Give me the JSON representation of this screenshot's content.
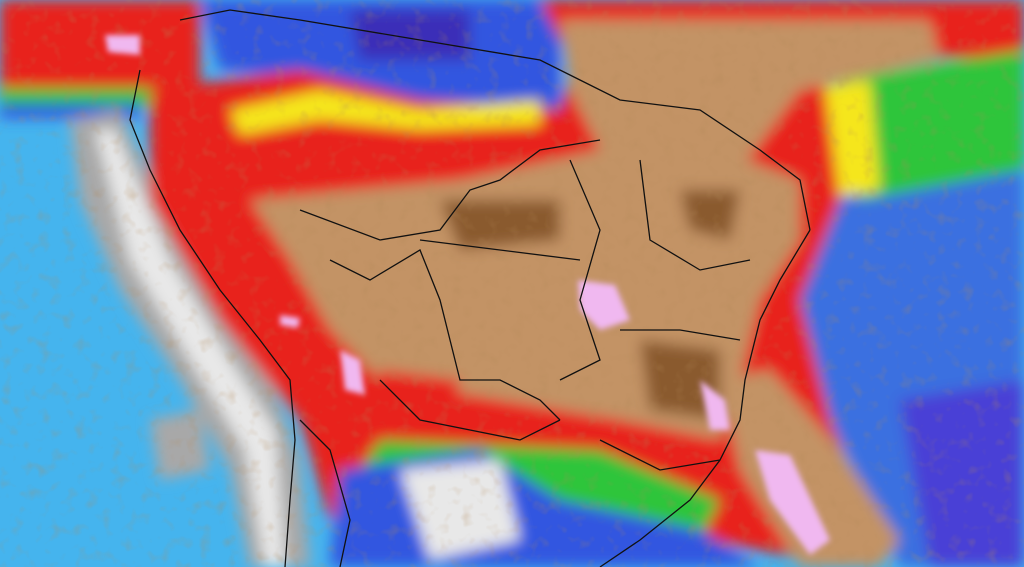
{
  "map": {
    "palette": {
      "pacific_ocean": "#45b4ee",
      "atlantic_ocean": "#3a6fe0",
      "deep_ocean": "#4a3fd6",
      "andes_gray": "#a8a8a8",
      "andes_white": "#e8e8e8",
      "dry_brown": "#c39365",
      "dark_brown": "#8a5a2e",
      "red": "#e8231c",
      "dark_red": "#c80c10",
      "orange": "#f57a1a",
      "yellow": "#f5e61e",
      "green": "#2fc53a",
      "blue": "#3157e0",
      "indigo": "#3a2fb8",
      "pink": "#f0b8f0",
      "border": "#111111"
    }
  }
}
